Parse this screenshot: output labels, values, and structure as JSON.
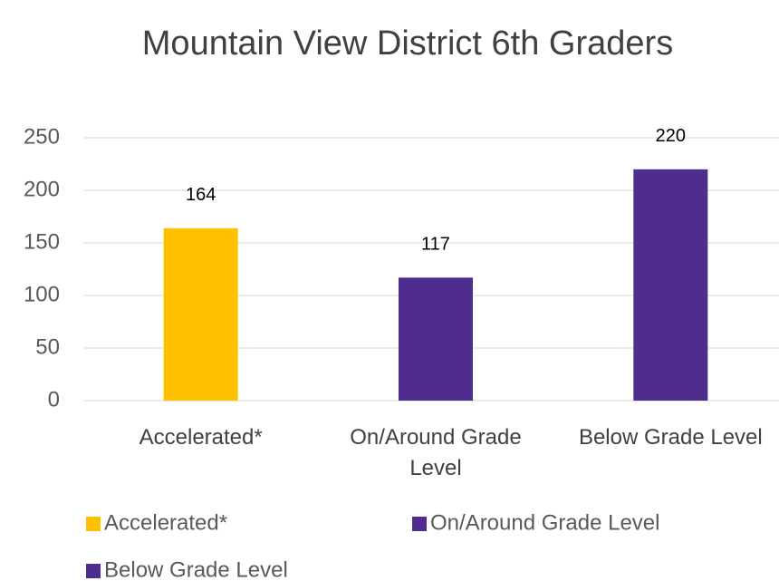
{
  "chart_data": {
    "type": "bar",
    "title": "Mountain View District 6th Graders",
    "categories": [
      "Accelerated*",
      "On/Around Grade Level",
      "Below Grade Level"
    ],
    "values": [
      164,
      117,
      220
    ],
    "colors": [
      "#ffc000",
      "#4f2d8f",
      "#4f2d8f"
    ],
    "ylim": [
      0,
      250
    ],
    "yticks": [
      0,
      50,
      100,
      150,
      200,
      250
    ],
    "grid": true,
    "legend": "bottom"
  }
}
